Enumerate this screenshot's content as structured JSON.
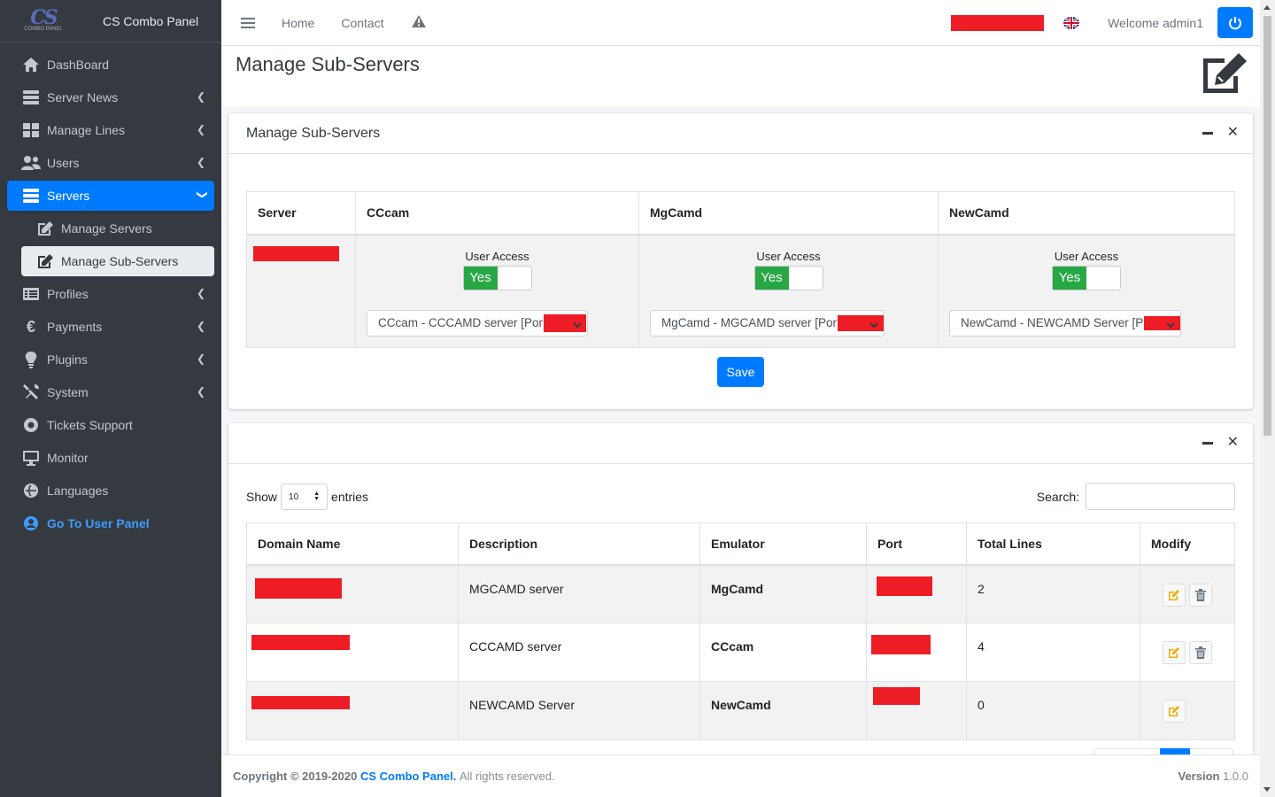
{
  "brand": {
    "logo_text": "CS",
    "logo_sub": "COMBO PANEL",
    "name": "CS Combo Panel"
  },
  "sidebar": {
    "items": [
      {
        "label": "DashBoard",
        "icon": "home-icon"
      },
      {
        "label": "Server News",
        "icon": "server-icon"
      },
      {
        "label": "Manage Lines",
        "icon": "th-large-icon"
      },
      {
        "label": "Users",
        "icon": "users-icon"
      },
      {
        "label": "Servers",
        "icon": "server-icon"
      },
      {
        "label": "Manage Servers",
        "icon": "edit-icon"
      },
      {
        "label": "Manage Sub-Servers",
        "icon": "edit-icon"
      },
      {
        "label": "Profiles",
        "icon": "list-icon"
      },
      {
        "label": "Payments",
        "icon": "euro-icon"
      },
      {
        "label": "Plugins",
        "icon": "lightbulb-icon"
      },
      {
        "label": "System",
        "icon": "tools-icon"
      },
      {
        "label": "Tickets Support",
        "icon": "lifebuoy-icon"
      },
      {
        "label": "Monitor",
        "icon": "desktop-icon"
      },
      {
        "label": "Languages",
        "icon": "language-icon"
      },
      {
        "label": "Go To User Panel",
        "icon": "user-circle-icon"
      }
    ]
  },
  "topbar": {
    "home": "Home",
    "contact": "Contact",
    "welcome": "Welcome admin1"
  },
  "page": {
    "title": "Manage Sub-Servers"
  },
  "sub_card": {
    "title": "Manage Sub-Servers",
    "headers": [
      "Server",
      "CCcam",
      "MgCamd",
      "NewCamd"
    ],
    "user_access_label": "User Access",
    "toggle_yes": "Yes",
    "selects": [
      "CCcam - CCCAMD server [Por",
      "MgCamd - MGCAMD server [Por",
      "NewCamd - NEWCAMD Server [P"
    ],
    "save": "Save"
  },
  "list_card": {
    "show": "Show",
    "entries_value": "10",
    "entries": "entries",
    "search_label": "Search:",
    "headers": [
      "Domain Name",
      "Description",
      "Emulator",
      "Port",
      "Total Lines",
      "Modify"
    ],
    "rows": [
      {
        "description": "MGCAMD server",
        "emulator": "MgCamd",
        "total_lines": "2"
      },
      {
        "description": "CCCAMD server",
        "emulator": "CCcam",
        "total_lines": "4"
      },
      {
        "description": "NEWCAMD Server",
        "emulator": "NewCamd",
        "total_lines": "0"
      }
    ]
  },
  "footer": {
    "copyright": "Copyright © 2019-2020",
    "brand": "CS Combo Panel.",
    "rights": "All rights reserved.",
    "version_label": "Version",
    "version": "1.0.0"
  },
  "colors": {
    "primary": "#007bff",
    "sidebar": "#343a40",
    "success": "#28a745",
    "redaction": "#ee1c25",
    "warning": "#f0ad00"
  }
}
